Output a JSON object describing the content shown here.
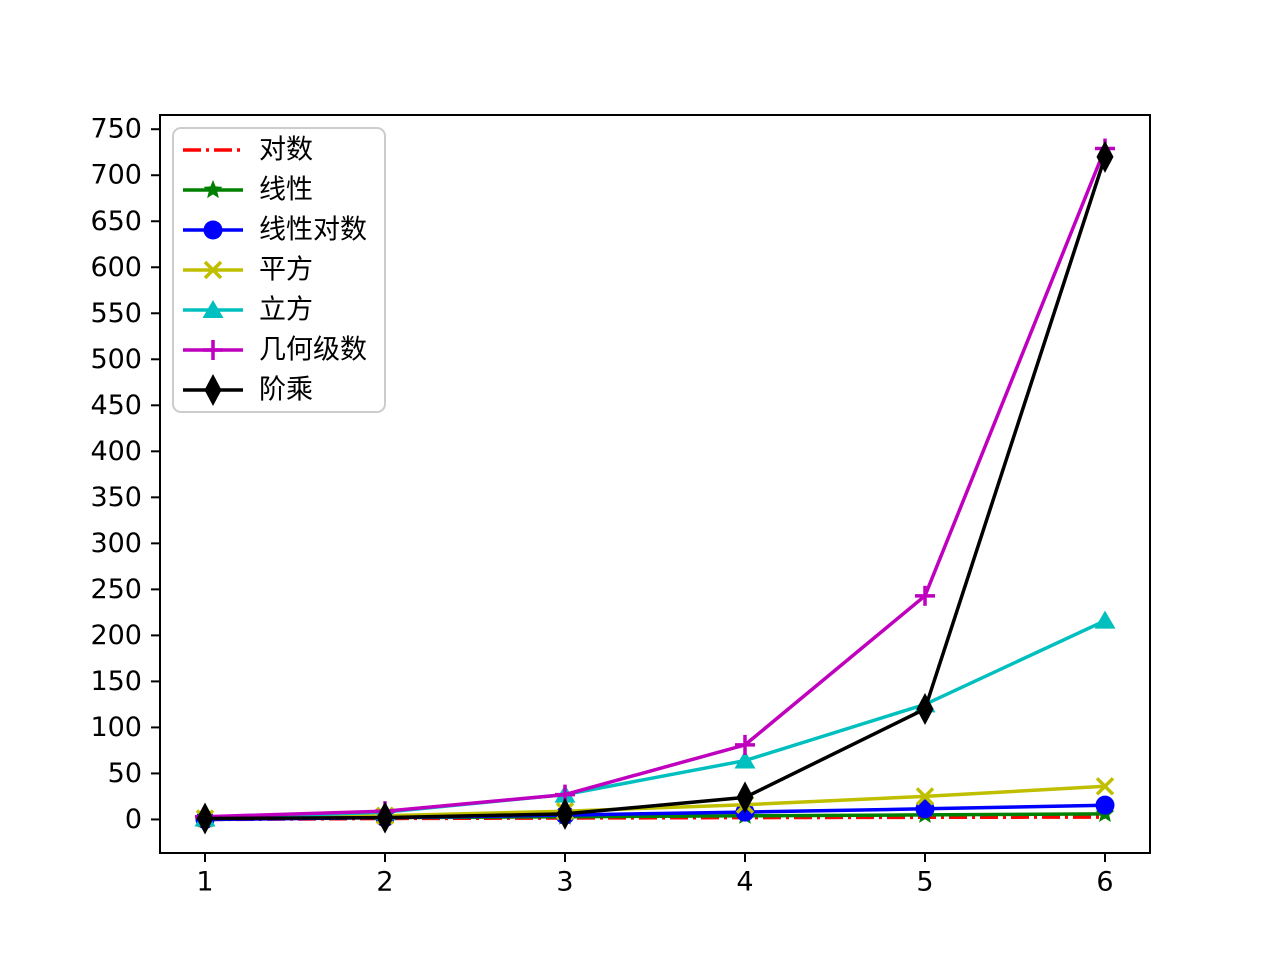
{
  "chart_data": {
    "type": "line",
    "title": "",
    "xlabel": "",
    "ylabel": "",
    "grid": false,
    "legend_position": "upper-left",
    "x": [
      1,
      2,
      3,
      4,
      5,
      6
    ],
    "xticks": [
      "1",
      "2",
      "3",
      "4",
      "5",
      "6"
    ],
    "yticks": [
      "0",
      "50",
      "100",
      "150",
      "200",
      "250",
      "300",
      "350",
      "400",
      "450",
      "500",
      "550",
      "600",
      "650",
      "700",
      "750"
    ],
    "ytick_values": [
      0,
      50,
      100,
      150,
      200,
      250,
      300,
      350,
      400,
      450,
      500,
      550,
      600,
      650,
      700,
      750
    ],
    "xlim": [
      0.75,
      6.25
    ],
    "ylim": [
      -36.45,
      765.45
    ],
    "series": [
      {
        "key": "logarithm",
        "name": "对数",
        "values": [
          0,
          1,
          1.58,
          2,
          2.32,
          2.58
        ],
        "color": "#ff0000",
        "linestyle": "dashdot",
        "marker": "none"
      },
      {
        "key": "linear",
        "name": "线性",
        "values": [
          1,
          2,
          3,
          4,
          5,
          6
        ],
        "color": "#008000",
        "linestyle": "solid",
        "marker": "star"
      },
      {
        "key": "linearithmic",
        "name": "线性对数",
        "values": [
          0,
          2,
          4.75,
          8,
          11.61,
          15.51
        ],
        "color": "#0000ff",
        "linestyle": "solid",
        "marker": "circle"
      },
      {
        "key": "square",
        "name": "平方",
        "values": [
          1,
          4,
          9,
          16,
          25,
          36
        ],
        "color": "#bfbf00",
        "linestyle": "solid",
        "marker": "x"
      },
      {
        "key": "cube",
        "name": "立方",
        "values": [
          1,
          8,
          27,
          64,
          125,
          216
        ],
        "color": "#00bfbf",
        "linestyle": "solid",
        "marker": "triangle-up"
      },
      {
        "key": "geometric",
        "name": "几何级数",
        "values": [
          3,
          9,
          27,
          81,
          243,
          729
        ],
        "color": "#bf00bf",
        "linestyle": "solid",
        "marker": "plus"
      },
      {
        "key": "factorial",
        "name": "阶乘",
        "values": [
          1,
          2,
          6,
          24,
          120,
          720
        ],
        "color": "#000000",
        "linestyle": "solid",
        "marker": "thin-diamond"
      }
    ]
  }
}
